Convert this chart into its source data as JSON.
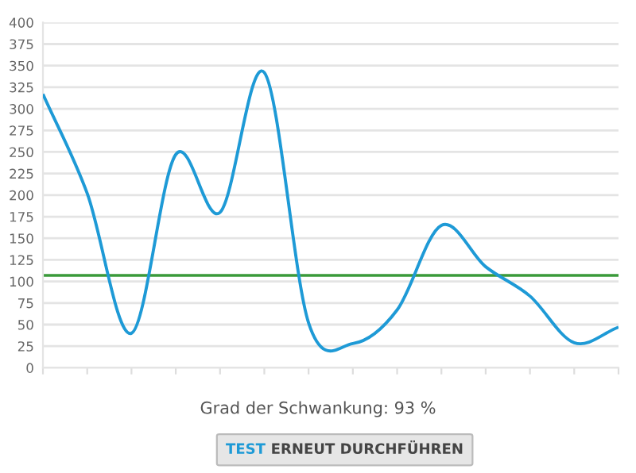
{
  "chart_data": {
    "type": "line",
    "categories": [
      null,
      null,
      null,
      null,
      null,
      null,
      null,
      null,
      null,
      null,
      null,
      null,
      null,
      null
    ],
    "series": [
      {
        "color": "#1e9ad6",
        "values": [
          317,
          202,
          40,
          247,
          180,
          342,
          52,
          28,
          67,
          165,
          117,
          83,
          29,
          47
        ]
      }
    ],
    "ylim": [
      0,
      400
    ],
    "yticks": [
      0,
      25,
      50,
      75,
      100,
      125,
      150,
      175,
      200,
      225,
      250,
      275,
      300,
      325,
      350,
      375,
      400
    ],
    "grid": "y",
    "marker": "none",
    "line_style": "solid",
    "ref_lines": [
      {
        "axis": "y",
        "value": 107,
        "color": "#3a9a3a"
      }
    ],
    "annotations": [
      "Grad der Schwankung: 93 %",
      "TEST ERNEUT DURCHFÜHREN"
    ]
  }
}
